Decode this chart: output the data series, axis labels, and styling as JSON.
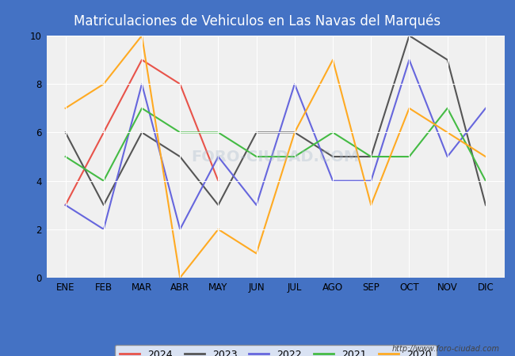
{
  "title": "Matriculaciones de Vehiculos en Las Navas del Marqués",
  "title_fontsize": 12,
  "months": [
    "ENE",
    "FEB",
    "MAR",
    "ABR",
    "MAY",
    "JUN",
    "JUL",
    "AGO",
    "SEP",
    "OCT",
    "NOV",
    "DIC"
  ],
  "series": {
    "2024": {
      "values": [
        3,
        6,
        9,
        8,
        4,
        null,
        null,
        null,
        null,
        null,
        null,
        null
      ],
      "color": "#e8534a",
      "label": "2024"
    },
    "2023": {
      "values": [
        6,
        3,
        6,
        5,
        3,
        6,
        6,
        5,
        5,
        10,
        9,
        3
      ],
      "color": "#555555",
      "label": "2023"
    },
    "2022": {
      "values": [
        3,
        2,
        8,
        2,
        5,
        3,
        8,
        4,
        4,
        9,
        5,
        7
      ],
      "color": "#6666dd",
      "label": "2022"
    },
    "2021": {
      "values": [
        5,
        4,
        7,
        6,
        6,
        5,
        5,
        6,
        5,
        5,
        7,
        4
      ],
      "color": "#44bb44",
      "label": "2021"
    },
    "2020": {
      "values": [
        7,
        8,
        10,
        0,
        2,
        1,
        6,
        9,
        3,
        7,
        6,
        5
      ],
      "color": "#ffaa22",
      "label": "2020"
    }
  },
  "ylim": [
    0,
    10
  ],
  "yticks": [
    0,
    2,
    4,
    6,
    8,
    10
  ],
  "fig_bg_color": "#4472c4",
  "plot_bg_color": "#f0f0f0",
  "header_color": "#4472c4",
  "grid_color": "#ffffff",
  "url": "http://www.foro-ciudad.com",
  "legend_years": [
    "2024",
    "2023",
    "2022",
    "2021",
    "2020"
  ]
}
